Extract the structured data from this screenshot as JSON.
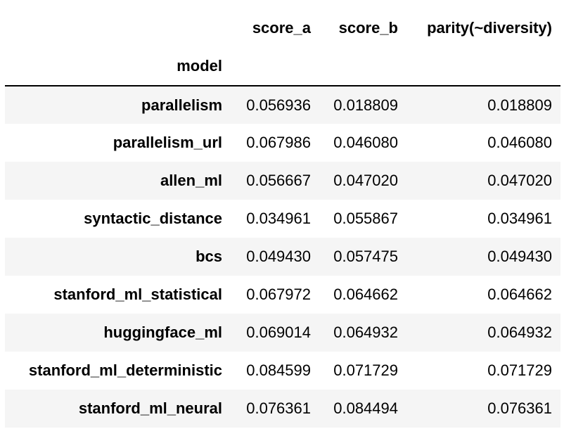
{
  "table": {
    "columns": [
      "score_a",
      "score_b",
      "parity(~diversity)"
    ],
    "index_name": "model",
    "rows": [
      {
        "model": "parallelism",
        "score_a": "0.056936",
        "score_b": "0.018809",
        "parity": "0.018809"
      },
      {
        "model": "parallelism_url",
        "score_a": "0.067986",
        "score_b": "0.046080",
        "parity": "0.046080"
      },
      {
        "model": "allen_ml",
        "score_a": "0.056667",
        "score_b": "0.047020",
        "parity": "0.047020"
      },
      {
        "model": "syntactic_distance",
        "score_a": "0.034961",
        "score_b": "0.055867",
        "parity": "0.034961"
      },
      {
        "model": "bcs",
        "score_a": "0.049430",
        "score_b": "0.057475",
        "parity": "0.049430"
      },
      {
        "model": "stanford_ml_statistical",
        "score_a": "0.067972",
        "score_b": "0.064662",
        "parity": "0.064662"
      },
      {
        "model": "huggingface_ml",
        "score_a": "0.069014",
        "score_b": "0.064932",
        "parity": "0.064932"
      },
      {
        "model": "stanford_ml_deterministic",
        "score_a": "0.084599",
        "score_b": "0.071729",
        "parity": "0.071729"
      },
      {
        "model": "stanford_ml_neural",
        "score_a": "0.076361",
        "score_b": "0.084494",
        "parity": "0.076361"
      }
    ]
  },
  "colors": {
    "stripe": "#f5f5f5",
    "rule": "#000000"
  }
}
